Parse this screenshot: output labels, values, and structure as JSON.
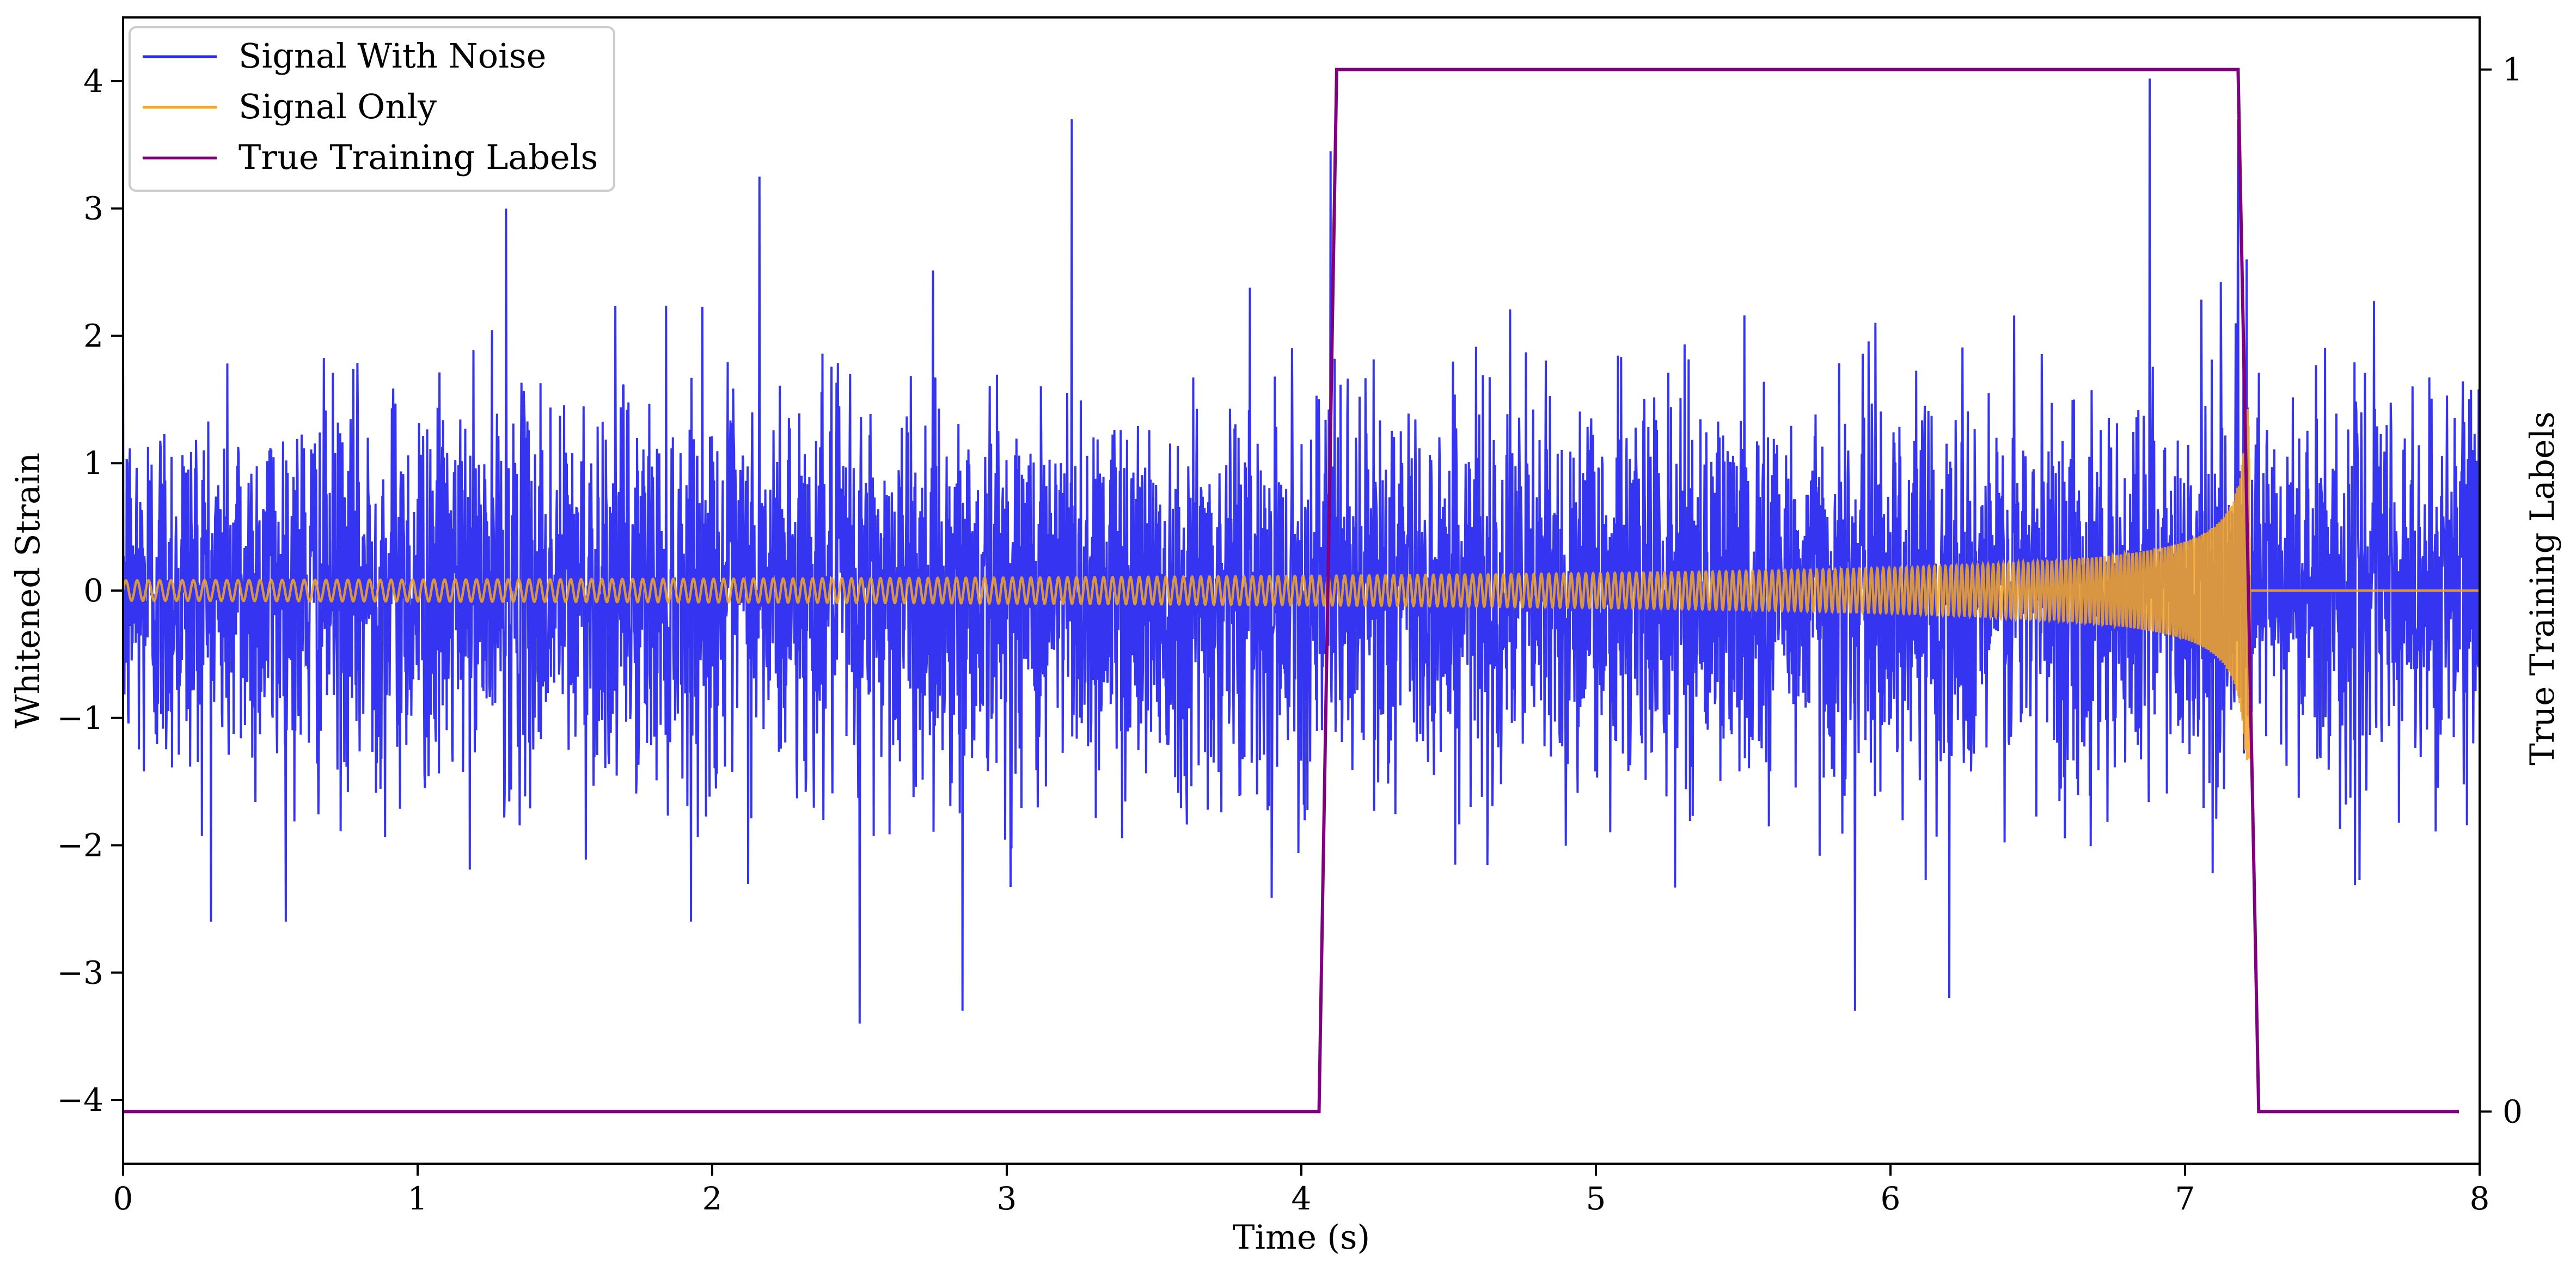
{
  "chart_data": {
    "type": "line",
    "xlabel": "Time (s)",
    "ylabel": "Whitened Strain",
    "y2label": "True Training Labels",
    "xlim": [
      0,
      8
    ],
    "ylim": [
      -4.5,
      4.5
    ],
    "y2lim": [
      -0.05,
      1.05
    ],
    "x_ticks": [
      0,
      1,
      2,
      3,
      4,
      5,
      6,
      7,
      8
    ],
    "y_ticks": [
      -4,
      -3,
      -2,
      -1,
      0,
      1,
      2,
      3,
      4
    ],
    "y2_ticks": [
      0,
      1
    ],
    "grid": false,
    "legend_position": "top-left",
    "series": [
      {
        "name": "Signal With Noise",
        "axis": "left",
        "color": "#2a2af0",
        "description": "Gaussian-like noise, std about 0.75, peaks near +/-4",
        "noise_std": 0.75,
        "notable_peaks": [
          {
            "x": 1.3,
            "y": 3.0
          },
          {
            "x": 2.16,
            "y": 3.25
          },
          {
            "x": 2.5,
            "y": -3.4
          },
          {
            "x": 2.85,
            "y": -3.3
          },
          {
            "x": 3.22,
            "y": 3.7
          },
          {
            "x": 4.1,
            "y": 3.45
          },
          {
            "x": 5.88,
            "y": -3.3
          },
          {
            "x": 6.2,
            "y": -3.2
          },
          {
            "x": 6.88,
            "y": 4.02
          },
          {
            "x": 7.18,
            "y": 3.7
          }
        ]
      },
      {
        "name": "Signal Only",
        "axis": "left",
        "color": "#f5a623",
        "description": "Chirp signal with growing amplitude and frequency, merging near 7.2 s then flat at 0",
        "start_amplitude": 0.08,
        "peak_amplitude": 1.65,
        "merger_time": 7.22,
        "end_time": 8.0
      },
      {
        "name": "True Training Labels",
        "axis": "right",
        "color": "#800080",
        "x": [
          0,
          4.06,
          4.12,
          7.18,
          7.25,
          7.93
        ],
        "y": [
          0,
          0,
          1,
          1,
          0,
          0
        ]
      }
    ]
  }
}
